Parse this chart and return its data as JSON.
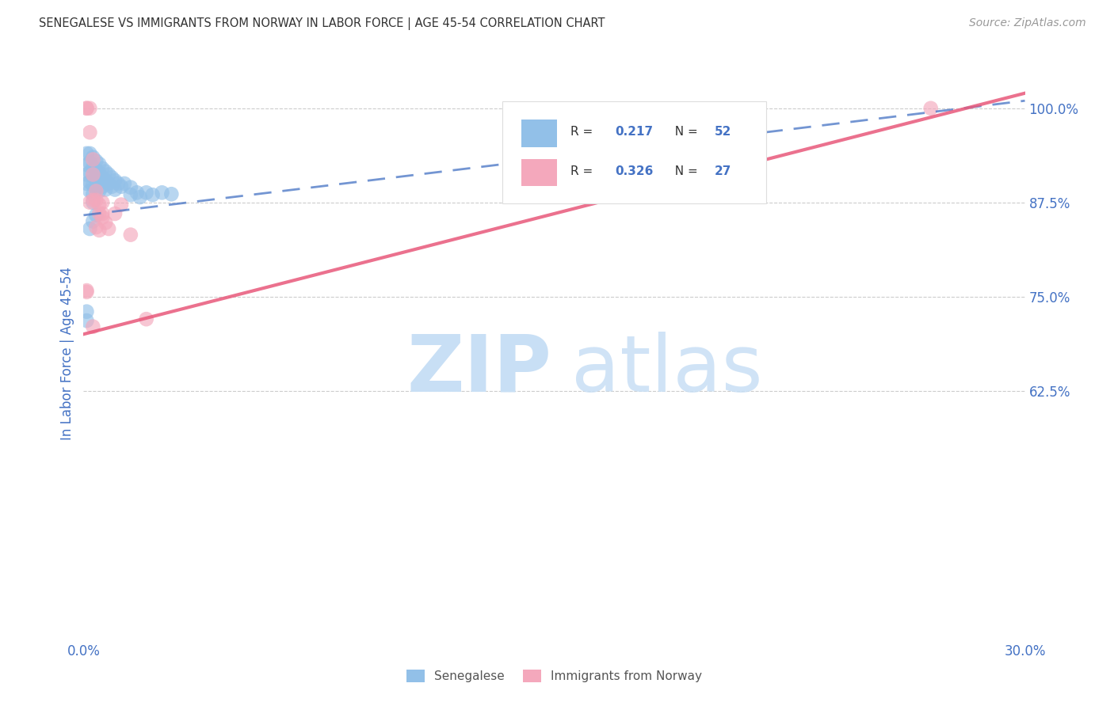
{
  "title": "SENEGALESE VS IMMIGRANTS FROM NORWAY IN LABOR FORCE | AGE 45-54 CORRELATION CHART",
  "source": "Source: ZipAtlas.com",
  "ylabel_label": "In Labor Force | Age 45-54",
  "ytick_labels": [
    "100.0%",
    "87.5%",
    "75.0%",
    "62.5%"
  ],
  "ytick_values": [
    1.0,
    0.875,
    0.75,
    0.625
  ],
  "xlim": [
    0.0,
    0.3
  ],
  "ylim": [
    0.3,
    1.05
  ],
  "blue_color": "#92C0E8",
  "pink_color": "#F4A8BC",
  "trendline_blue_color": "#4472C4",
  "trendline_pink_color": "#E8587A",
  "tick_label_color": "#4472C4",
  "senegalese_x": [
    0.001,
    0.001,
    0.001,
    0.001,
    0.002,
    0.002,
    0.002,
    0.002,
    0.002,
    0.003,
    0.003,
    0.003,
    0.003,
    0.003,
    0.003,
    0.004,
    0.004,
    0.004,
    0.004,
    0.005,
    0.005,
    0.005,
    0.005,
    0.006,
    0.006,
    0.006,
    0.007,
    0.007,
    0.007,
    0.008,
    0.008,
    0.009,
    0.009,
    0.01,
    0.01,
    0.011,
    0.012,
    0.013,
    0.015,
    0.015,
    0.017,
    0.018,
    0.02,
    0.022,
    0.025,
    0.028,
    0.001,
    0.001,
    0.002,
    0.003,
    0.004
  ],
  "senegalese_y": [
    0.94,
    0.925,
    0.912,
    0.9,
    0.94,
    0.928,
    0.915,
    0.902,
    0.89,
    0.935,
    0.922,
    0.91,
    0.898,
    0.886,
    0.875,
    0.93,
    0.918,
    0.906,
    0.894,
    0.926,
    0.914,
    0.902,
    0.89,
    0.92,
    0.908,
    0.896,
    0.916,
    0.904,
    0.892,
    0.912,
    0.9,
    0.908,
    0.896,
    0.904,
    0.892,
    0.9,
    0.896,
    0.9,
    0.895,
    0.885,
    0.888,
    0.882,
    0.888,
    0.885,
    0.888,
    0.886,
    0.73,
    0.718,
    0.84,
    0.85,
    0.858
  ],
  "norway_x": [
    0.001,
    0.001,
    0.002,
    0.002,
    0.003,
    0.003,
    0.004,
    0.004,
    0.005,
    0.005,
    0.006,
    0.006,
    0.007,
    0.008,
    0.01,
    0.012,
    0.015,
    0.02,
    0.001,
    0.002,
    0.003,
    0.005,
    0.001,
    0.003,
    0.004,
    0.006,
    0.27
  ],
  "norway_y": [
    1.0,
    1.0,
    1.0,
    0.968,
    0.932,
    0.912,
    0.89,
    0.878,
    0.872,
    0.86,
    0.875,
    0.86,
    0.848,
    0.84,
    0.86,
    0.872,
    0.832,
    0.72,
    0.758,
    0.875,
    0.878,
    0.838,
    0.756,
    0.71,
    0.842,
    0.855,
    1.0
  ]
}
